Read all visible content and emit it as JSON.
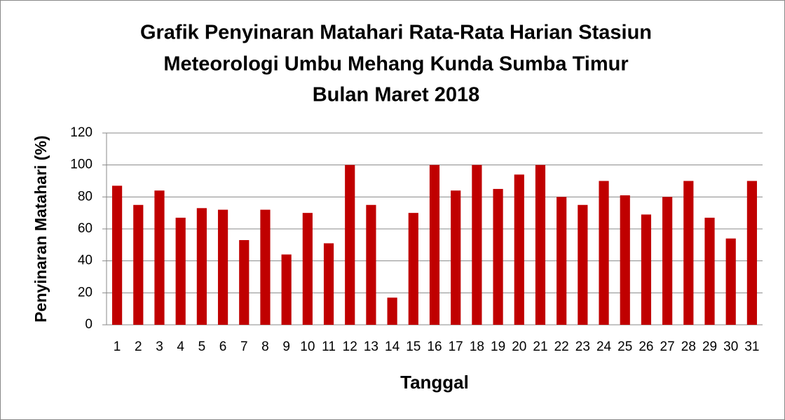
{
  "chart_data": {
    "type": "bar",
    "title": [
      "Grafik Penyinaran Matahari Rata-Rata Harian Stasiun",
      "Meteorologi Umbu Mehang Kunda Sumba Timur",
      "Bulan Maret 2018"
    ],
    "x_label": "Tanggal",
    "y_label": "Penyinaran Matahari (%)",
    "categories": [
      "1",
      "2",
      "3",
      "4",
      "5",
      "6",
      "7",
      "8",
      "9",
      "10",
      "11",
      "12",
      "13",
      "14",
      "15",
      "16",
      "17",
      "18",
      "19",
      "20",
      "21",
      "22",
      "23",
      "24",
      "25",
      "26",
      "27",
      "28",
      "29",
      "30",
      "31"
    ],
    "values": [
      87,
      75,
      84,
      67,
      73,
      72,
      53,
      72,
      44,
      70,
      51,
      100,
      75,
      17,
      70,
      100,
      84,
      100,
      85,
      94,
      100,
      80,
      75,
      90,
      81,
      69,
      80,
      90,
      67,
      54,
      90
    ],
    "color": "#c00000",
    "ylim": [
      0,
      120
    ],
    "yticks": [
      0,
      20,
      40,
      60,
      80,
      100,
      120
    ],
    "grid": true
  }
}
